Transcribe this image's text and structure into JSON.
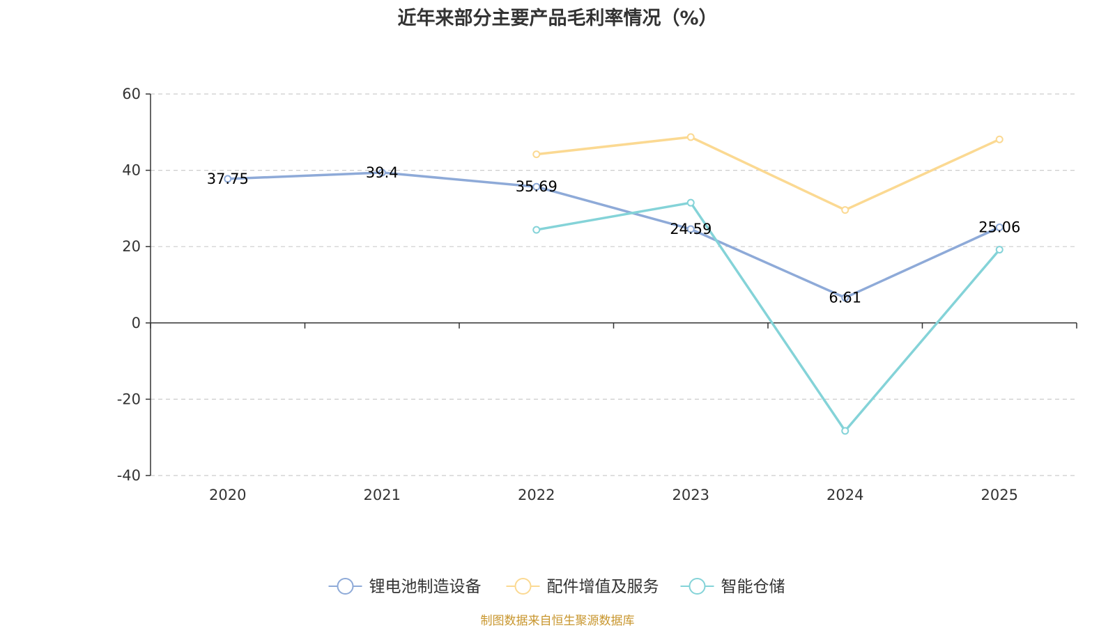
{
  "chart_data": {
    "type": "line",
    "title": "近年来部分主要产品毛利率情况（%）",
    "categories": [
      "2020",
      "2021",
      "2022",
      "2023",
      "2024",
      "2025"
    ],
    "ylim": [
      -40,
      60
    ],
    "yticks": [
      60,
      40,
      20,
      0,
      -20,
      -40
    ],
    "grid": true,
    "legend_position": "bottom",
    "series": [
      {
        "name": "锂电池制造设备",
        "color": "#8eaad8",
        "values": [
          37.75,
          39.4,
          35.69,
          24.59,
          6.61,
          25.06
        ],
        "labels": [
          "37.75",
          "39.4",
          "35.69",
          "24.59",
          "6.61",
          "25.06"
        ]
      },
      {
        "name": "配件增值及服务",
        "color": "#fbd992",
        "values": [
          null,
          null,
          44.2,
          48.7,
          29.6,
          48.1
        ]
      },
      {
        "name": "智能仓储",
        "color": "#84d3d8",
        "values": [
          null,
          null,
          24.4,
          31.5,
          -28.3,
          19.2
        ]
      }
    ]
  },
  "source_note": "制图数据来自恒生聚源数据库"
}
